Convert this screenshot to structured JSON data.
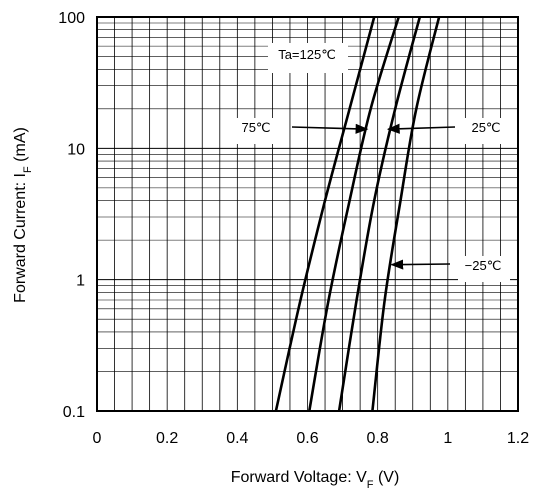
{
  "chart_data": {
    "type": "line",
    "xlabel": {
      "main": "Forward Voltage: V",
      "sub": "F",
      "unit": " (V)"
    },
    "ylabel": {
      "main": "Forward Current: I",
      "sub": "F",
      "unit": " (mA)"
    },
    "xlim": [
      0,
      1.2
    ],
    "ylim": [
      0.1,
      100
    ],
    "yscale": "log",
    "grid": true,
    "x_ticks": [
      {
        "value": 0,
        "label": "0"
      },
      {
        "value": 0.2,
        "label": "0.2"
      },
      {
        "value": 0.4,
        "label": "0.4"
      },
      {
        "value": 0.6,
        "label": "0.6"
      },
      {
        "value": 0.8,
        "label": "0.8"
      },
      {
        "value": 1,
        "label": "1"
      },
      {
        "value": 1.2,
        "label": "1.2"
      }
    ],
    "y_ticks": [
      {
        "value": 0.1,
        "label": "0.1"
      },
      {
        "value": 1,
        "label": "1"
      },
      {
        "value": 10,
        "label": "10"
      },
      {
        "value": 100,
        "label": "100"
      }
    ],
    "series": [
      {
        "name": "Ta=125℃",
        "points": [
          [
            0.51,
            0.1
          ],
          [
            0.58,
            0.7
          ],
          [
            0.65,
            4
          ],
          [
            0.72,
            20
          ],
          [
            0.79,
            100
          ]
        ]
      },
      {
        "name": "75℃",
        "points": [
          [
            0.605,
            0.1
          ],
          [
            0.66,
            0.7
          ],
          [
            0.72,
            4
          ],
          [
            0.78,
            20
          ],
          [
            0.86,
            100
          ]
        ]
      },
      {
        "name": "25℃",
        "points": [
          [
            0.69,
            0.1
          ],
          [
            0.74,
            0.7
          ],
          [
            0.79,
            4
          ],
          [
            0.85,
            20
          ],
          [
            0.92,
            100
          ]
        ]
      },
      {
        "name": "-25℃",
        "points": [
          [
            0.785,
            0.1
          ],
          [
            0.82,
            0.7
          ],
          [
            0.865,
            4
          ],
          [
            0.91,
            20
          ],
          [
            0.975,
            100
          ]
        ]
      }
    ],
    "annotations": [
      {
        "text": "Ta=125℃",
        "series": "Ta=125℃",
        "arrow": false
      },
      {
        "text": "75℃",
        "series": "75℃",
        "arrow": true,
        "target": [
          0.77,
          14
        ]
      },
      {
        "text": "25℃",
        "series": "25℃",
        "arrow": true,
        "target": [
          0.83,
          14
        ]
      },
      {
        "text": "−25℃",
        "series": "-25℃",
        "arrow": true,
        "target": [
          0.84,
          1.3
        ]
      }
    ]
  }
}
